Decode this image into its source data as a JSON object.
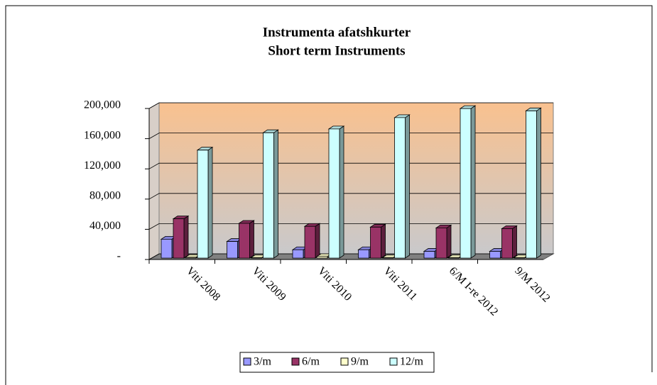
{
  "chart_data": {
    "type": "bar3d",
    "title": "Instrumenta afatshkurter",
    "subtitle": "Short term Instruments",
    "categories": [
      "Viti 2008",
      "Viti 2009",
      "Viti 2010",
      "Viti 2011",
      "6/M I-re 2012",
      "9/M  2012"
    ],
    "series": [
      {
        "name": "3/m",
        "color": "#9999ff",
        "values": [
          25000,
          22000,
          11000,
          11000,
          9000,
          9000
        ]
      },
      {
        "name": "6/m",
        "color": "#993366",
        "values": [
          52000,
          46000,
          42000,
          41000,
          40000,
          39000
        ]
      },
      {
        "name": "9/m",
        "color": "#ffffcc",
        "values": [
          1000,
          500,
          2000,
          500,
          500,
          500
        ]
      },
      {
        "name": "12/m",
        "color": "#ccffff",
        "values": [
          143000,
          166000,
          171000,
          186000,
          198000,
          195000
        ]
      }
    ],
    "ylim": [
      0,
      200000
    ],
    "yticks": [
      {
        "value": 0,
        "label": "-"
      },
      {
        "value": 40000,
        "label": "40,000"
      },
      {
        "value": 80000,
        "label": "80,000"
      },
      {
        "value": 120000,
        "label": "120,000"
      },
      {
        "value": 160000,
        "label": "160,000"
      },
      {
        "value": 200000,
        "label": "200,000"
      }
    ],
    "grid": true,
    "legend": "bottom"
  }
}
